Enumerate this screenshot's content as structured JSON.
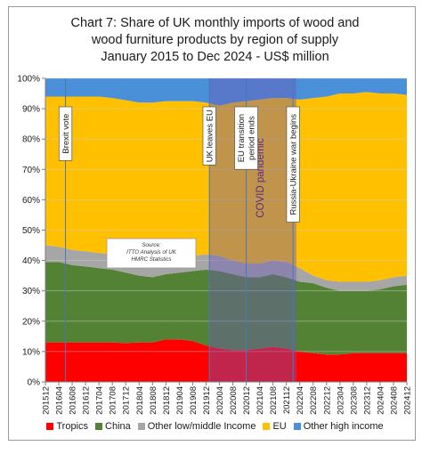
{
  "chart_data": {
    "type": "area",
    "stacked": true,
    "percent": true,
    "title": [
      "Chart 7: Share of UK monthly imports of wood and",
      "wood furniture products by region of supply",
      "January 2015 to Dec 2024 - US$ million"
    ],
    "xlabel": "",
    "ylabel": "",
    "ylim": [
      0,
      100
    ],
    "y_ticks": [
      "0%",
      "10%",
      "20%",
      "30%",
      "40%",
      "50%",
      "60%",
      "70%",
      "80%",
      "90%",
      "100%"
    ],
    "x_range": [
      "201512",
      "202412"
    ],
    "x_ticks": [
      "201512",
      "201604",
      "201608",
      "201612",
      "201704",
      "201708",
      "201712",
      "201804",
      "201808",
      "201812",
      "201904",
      "201908",
      "201912",
      "202004",
      "202008",
      "202012",
      "202104",
      "202108",
      "202112",
      "202204",
      "202208",
      "202212",
      "202304",
      "202308",
      "202312",
      "202404",
      "202408",
      "202412"
    ],
    "grid": true,
    "legend_position": "bottom",
    "series": [
      {
        "name": "Tropics",
        "color": "#ff0000",
        "values": [
          13,
          13,
          13,
          13,
          13,
          13,
          12.8,
          13,
          13,
          14,
          14,
          13.5,
          12,
          11,
          10.5,
          10.5,
          11,
          11.5,
          11,
          10,
          9.5,
          9,
          9,
          9.5,
          9.5,
          9.5,
          9.5,
          9.5
        ]
      },
      {
        "name": "China",
        "color": "#548235",
        "values": [
          26.5,
          26.5,
          25.5,
          25,
          24.5,
          24,
          23.2,
          22,
          21.5,
          21.5,
          22,
          23,
          25,
          25.5,
          25,
          24,
          23.5,
          24,
          23.5,
          23,
          23,
          22,
          21,
          20.5,
          20.5,
          21,
          22,
          22.5
        ]
      },
      {
        "name": "Other low/middle Income",
        "color": "#a6a6a6",
        "values": [
          5.5,
          5,
          5,
          5,
          5,
          5,
          5,
          5.5,
          5.5,
          5,
          5,
          5,
          5,
          5,
          4.5,
          4.5,
          4.5,
          4.5,
          5,
          4.5,
          2.5,
          2.5,
          3,
          3,
          3,
          3,
          3,
          3
        ]
      },
      {
        "name": "EU",
        "color": "#ffc000",
        "values": [
          49,
          49.5,
          50.5,
          51,
          51.5,
          51.5,
          51.8,
          51.5,
          52,
          52,
          51.5,
          51,
          50,
          49.5,
          52,
          53.5,
          54,
          53.5,
          54,
          55.5,
          58.5,
          60.5,
          62,
          62,
          62.5,
          61.5,
          60.5,
          59.5
        ]
      },
      {
        "name": "Other high income",
        "color": "#4a90d9",
        "values": [
          6,
          6,
          6,
          6,
          6,
          6.5,
          7.2,
          8,
          8,
          7.5,
          7.5,
          7.5,
          8,
          9,
          8,
          7.5,
          7,
          6.5,
          6.5,
          7,
          6.5,
          6,
          5,
          5,
          4.5,
          5,
          5,
          5.5
        ]
      }
    ],
    "annotations": [
      {
        "text": "Brexit vote",
        "x": "201606"
      },
      {
        "text": "UK leaves EU",
        "x": "202001"
      },
      {
        "text": "EU transition period ends",
        "x": "202012"
      },
      {
        "text": "Russia-Ukraine war begins",
        "x": "202202"
      }
    ],
    "shaded_region": {
      "label": "COVID pandemic",
      "from": "202001",
      "to": "202203"
    },
    "source_note": [
      "Source:",
      "ITTO Analysis of UK",
      "HMRC Statistics"
    ]
  }
}
